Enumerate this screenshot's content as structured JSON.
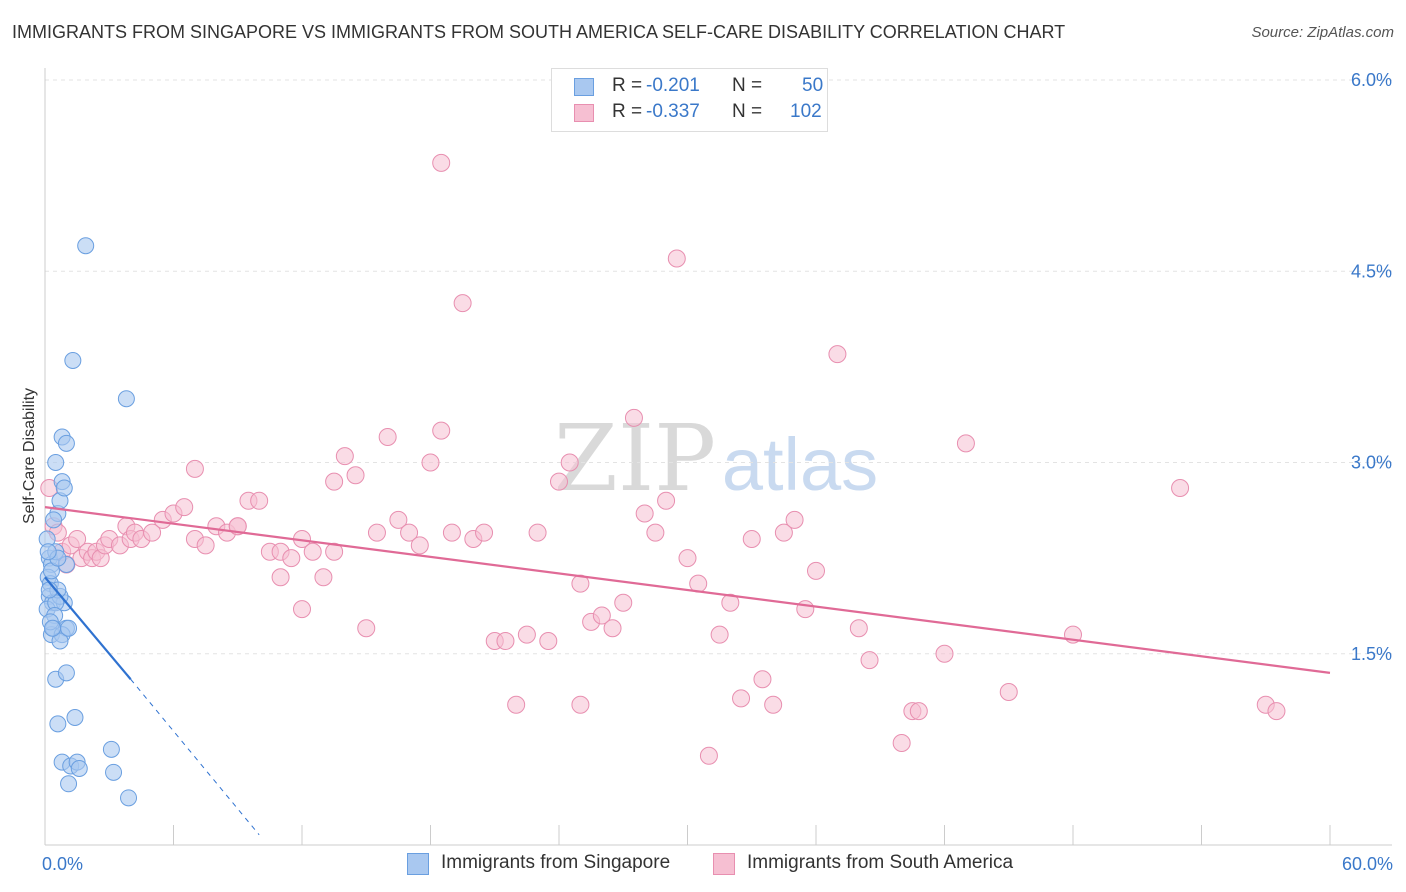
{
  "title": "IMMIGRANTS FROM SINGAPORE VS IMMIGRANTS FROM SOUTH AMERICA SELF-CARE DISABILITY CORRELATION CHART",
  "source": "Source: ZipAtlas.com",
  "watermark": {
    "zip": "ZIP",
    "atlas": "atlas"
  },
  "legend": {
    "rows": [
      {
        "r_label": "R =",
        "r_value": "-0.201",
        "n_label": "N =",
        "n_value": "50"
      },
      {
        "r_label": "R =",
        "r_value": "-0.337",
        "n_label": "N =",
        "n_value": "102"
      }
    ]
  },
  "colors": {
    "singapore_fill": "#a9c8f0",
    "singapore_stroke": "#6a9fe0",
    "singapore_line": "#2f72d0",
    "south_america_fill": "#f6bfd2",
    "south_america_stroke": "#e88fb0",
    "south_america_line": "#e06a96",
    "axis_text": "#3a78c9",
    "grid": "#e3e3e3"
  },
  "chart_data": {
    "type": "scatter",
    "title": "IMMIGRANTS FROM SINGAPORE VS IMMIGRANTS FROM SOUTH AMERICA SELF-CARE DISABILITY CORRELATION CHART",
    "xlabel": "",
    "ylabel": "Self-Care Disability",
    "xlim": [
      0,
      60
    ],
    "ylim": [
      0,
      6.0
    ],
    "x_tick_labels": [
      {
        "value": 0,
        "label": "0.0%"
      },
      {
        "value": 60,
        "label": "60.0%"
      }
    ],
    "y_ticks": [
      {
        "value": 1.5,
        "label": "1.5%"
      },
      {
        "value": 3.0,
        "label": "3.0%"
      },
      {
        "value": 4.5,
        "label": "4.5%"
      },
      {
        "value": 6.0,
        "label": "6.0%"
      }
    ],
    "grid": true,
    "series": [
      {
        "name": "Immigrants from Singapore",
        "r": -0.201,
        "n": 50,
        "trend": {
          "x": [
            0,
            4.0
          ],
          "y": [
            2.1,
            1.3
          ],
          "dashed_extension": {
            "x": [
              4.0,
              10.0
            ],
            "y": [
              1.3,
              0.08
            ]
          }
        },
        "points": [
          [
            0.1,
            2.4
          ],
          [
            0.2,
            2.25
          ],
          [
            0.3,
            2.2
          ],
          [
            0.15,
            2.1
          ],
          [
            0.25,
            2.05
          ],
          [
            0.2,
            1.95
          ],
          [
            0.35,
            1.9
          ],
          [
            0.1,
            1.85
          ],
          [
            0.4,
            1.7
          ],
          [
            0.3,
            1.65
          ],
          [
            0.5,
            2.3
          ],
          [
            0.6,
            2.6
          ],
          [
            0.7,
            2.7
          ],
          [
            0.8,
            2.85
          ],
          [
            0.9,
            2.8
          ],
          [
            1.0,
            2.2
          ],
          [
            0.9,
            1.9
          ],
          [
            0.7,
            1.95
          ],
          [
            0.6,
            2.0
          ],
          [
            0.5,
            1.9
          ],
          [
            0.45,
            1.8
          ],
          [
            1.0,
            1.7
          ],
          [
            0.8,
            1.65
          ],
          [
            0.7,
            1.6
          ],
          [
            1.1,
            1.7
          ],
          [
            0.5,
            3.0
          ],
          [
            0.8,
            3.2
          ],
          [
            1.0,
            3.15
          ],
          [
            1.3,
            3.8
          ],
          [
            1.9,
            4.7
          ],
          [
            3.8,
            3.5
          ],
          [
            0.5,
            1.3
          ],
          [
            1.0,
            1.35
          ],
          [
            0.6,
            0.95
          ],
          [
            1.4,
            1.0
          ],
          [
            0.8,
            0.65
          ],
          [
            1.2,
            0.62
          ],
          [
            1.5,
            0.65
          ],
          [
            1.6,
            0.6
          ],
          [
            3.2,
            0.57
          ],
          [
            3.1,
            0.75
          ],
          [
            1.1,
            0.48
          ],
          [
            3.9,
            0.37
          ],
          [
            0.3,
            2.15
          ],
          [
            0.25,
            1.75
          ],
          [
            0.4,
            2.55
          ],
          [
            0.6,
            2.25
          ],
          [
            0.2,
            2.0
          ],
          [
            0.35,
            1.7
          ],
          [
            0.15,
            2.3
          ]
        ]
      },
      {
        "name": "Immigrants from South America",
        "r": -0.337,
        "n": 102,
        "trend": {
          "x": [
            0,
            60
          ],
          "y": [
            2.65,
            1.35
          ]
        },
        "points": [
          [
            0.2,
            2.8
          ],
          [
            0.4,
            2.5
          ],
          [
            0.6,
            2.45
          ],
          [
            0.8,
            2.3
          ],
          [
            1.0,
            2.2
          ],
          [
            1.2,
            2.35
          ],
          [
            1.5,
            2.4
          ],
          [
            1.7,
            2.25
          ],
          [
            2.0,
            2.3
          ],
          [
            2.2,
            2.25
          ],
          [
            2.4,
            2.3
          ],
          [
            2.6,
            2.25
          ],
          [
            2.8,
            2.35
          ],
          [
            3.0,
            2.4
          ],
          [
            3.5,
            2.35
          ],
          [
            3.8,
            2.5
          ],
          [
            4.0,
            2.4
          ],
          [
            4.2,
            2.45
          ],
          [
            4.5,
            2.4
          ],
          [
            5.0,
            2.45
          ],
          [
            5.5,
            2.55
          ],
          [
            6.0,
            2.6
          ],
          [
            6.5,
            2.65
          ],
          [
            7.0,
            2.4
          ],
          [
            7.5,
            2.35
          ],
          [
            8.0,
            2.5
          ],
          [
            8.5,
            2.45
          ],
          [
            9.0,
            2.5
          ],
          [
            9.5,
            2.7
          ],
          [
            10.0,
            2.7
          ],
          [
            10.5,
            2.3
          ],
          [
            11.0,
            2.3
          ],
          [
            11.5,
            2.25
          ],
          [
            12.0,
            2.4
          ],
          [
            12.5,
            2.3
          ],
          [
            13.0,
            2.1
          ],
          [
            13.5,
            2.85
          ],
          [
            14.0,
            3.05
          ],
          [
            14.5,
            2.9
          ],
          [
            15.0,
            1.7
          ],
          [
            15.5,
            2.45
          ],
          [
            16.0,
            3.2
          ],
          [
            16.5,
            2.55
          ],
          [
            17.0,
            2.45
          ],
          [
            17.5,
            2.35
          ],
          [
            18.0,
            3.0
          ],
          [
            18.5,
            3.25
          ],
          [
            19.0,
            2.45
          ],
          [
            19.5,
            4.25
          ],
          [
            20.0,
            2.4
          ],
          [
            20.5,
            2.45
          ],
          [
            21.0,
            1.6
          ],
          [
            21.5,
            1.6
          ],
          [
            22.0,
            1.1
          ],
          [
            22.5,
            1.65
          ],
          [
            23.0,
            2.45
          ],
          [
            23.5,
            1.6
          ],
          [
            24.0,
            2.85
          ],
          [
            24.5,
            3.0
          ],
          [
            25.0,
            2.05
          ],
          [
            25.5,
            1.75
          ],
          [
            26.0,
            1.8
          ],
          [
            26.5,
            1.7
          ],
          [
            27.0,
            1.9
          ],
          [
            27.5,
            3.35
          ],
          [
            28.0,
            2.6
          ],
          [
            28.5,
            2.45
          ],
          [
            29.0,
            2.7
          ],
          [
            29.5,
            4.6
          ],
          [
            30.0,
            2.25
          ],
          [
            30.5,
            2.05
          ],
          [
            31.0,
            0.7
          ],
          [
            31.5,
            1.65
          ],
          [
            32.0,
            1.9
          ],
          [
            32.5,
            1.15
          ],
          [
            33.0,
            2.4
          ],
          [
            33.5,
            1.3
          ],
          [
            34.0,
            1.1
          ],
          [
            34.5,
            2.45
          ],
          [
            35.0,
            2.55
          ],
          [
            35.5,
            1.85
          ],
          [
            36.0,
            2.15
          ],
          [
            37.0,
            3.85
          ],
          [
            38.0,
            1.7
          ],
          [
            38.5,
            1.45
          ],
          [
            40.0,
            0.8
          ],
          [
            40.5,
            1.05
          ],
          [
            40.8,
            1.05
          ],
          [
            42.0,
            1.5
          ],
          [
            43.0,
            3.15
          ],
          [
            45.0,
            1.2
          ],
          [
            48.0,
            1.65
          ],
          [
            53.0,
            2.8
          ],
          [
            57.0,
            1.1
          ],
          [
            57.5,
            1.05
          ],
          [
            11.0,
            2.1
          ],
          [
            25.0,
            1.1
          ],
          [
            7.0,
            2.95
          ],
          [
            9.0,
            2.5
          ],
          [
            18.5,
            5.35
          ],
          [
            12.0,
            1.85
          ],
          [
            13.5,
            2.3
          ]
        ]
      }
    ]
  },
  "bottom_legend": [
    {
      "label": "Immigrants from Singapore"
    },
    {
      "label": "Immigrants from South America"
    }
  ]
}
